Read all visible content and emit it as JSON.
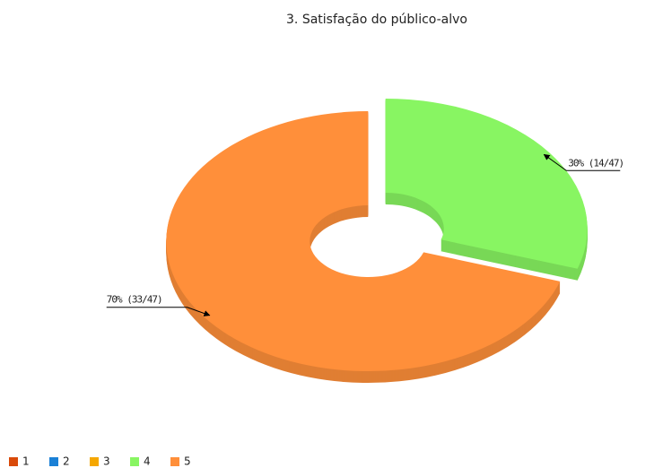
{
  "chart_data": {
    "type": "donut",
    "title": "3. Satisfação do público-alvo",
    "categories": [
      "1",
      "2",
      "3",
      "4",
      "5"
    ],
    "values": [
      0,
      0,
      0,
      30,
      70
    ],
    "value_labels": [
      null,
      null,
      null,
      "30% (14/47)",
      "70% (33/47)"
    ],
    "colors": [
      "#d94a0a",
      "#1a80d6",
      "#f5a700",
      "#88f562",
      "#ff8f3a"
    ],
    "legend": "bottom-left"
  }
}
